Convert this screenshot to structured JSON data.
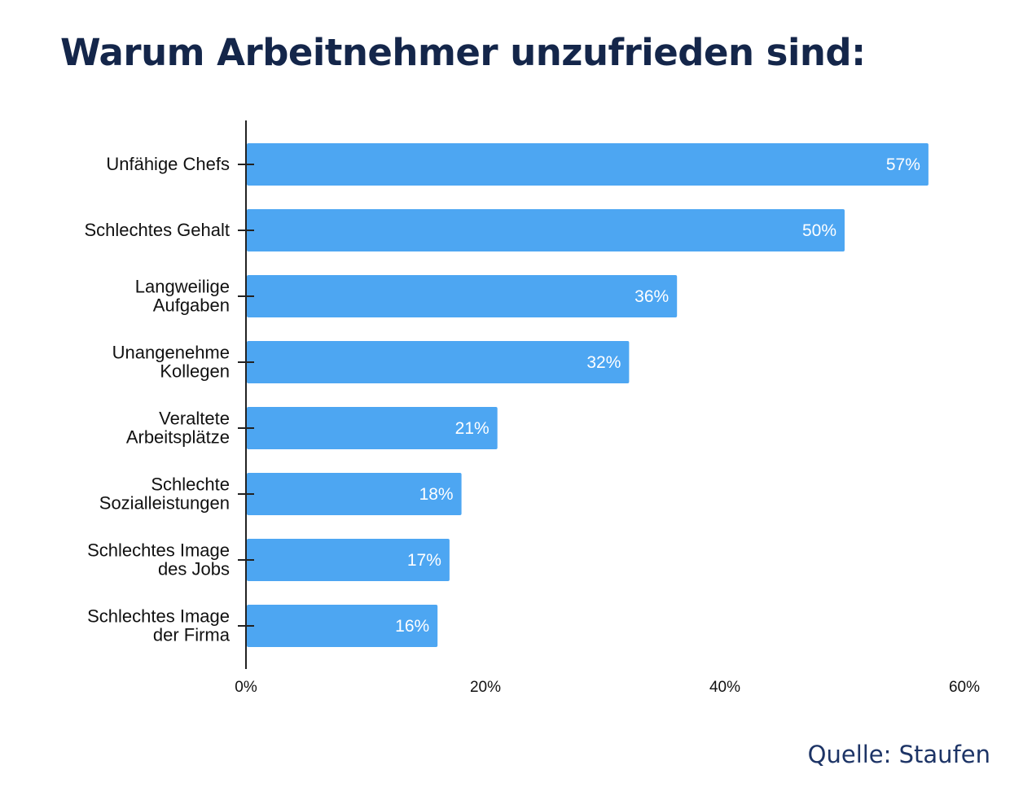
{
  "title": "Warum Arbeitnehmer unzufrieden sind:",
  "source": "Quelle: Staufen",
  "colors": {
    "bar": "#4da6f2",
    "axis": "#222222",
    "title": "#14264a",
    "source": "#1d3466"
  },
  "chart_data": {
    "type": "bar",
    "orientation": "horizontal",
    "title": "",
    "xlabel": "",
    "ylabel": "",
    "categories": [
      [
        "Unfähige Chefs"
      ],
      [
        "Schlechtes Gehalt"
      ],
      [
        "Langweilige",
        "Aufgaben"
      ],
      [
        "Unangenehme",
        "Kollegen"
      ],
      [
        "Veraltete",
        "Arbeitsplätze"
      ],
      [
        "Schlechte",
        "Sozialleistungen"
      ],
      [
        "Schlechtes Image",
        "des Jobs"
      ],
      [
        "Schlechtes Image",
        "der Firma"
      ]
    ],
    "values": [
      57,
      50,
      36,
      32,
      21,
      18,
      17,
      16
    ],
    "value_labels": [
      "57%",
      "50%",
      "36%",
      "32%",
      "21%",
      "18%",
      "17%",
      "16%"
    ],
    "xlim": [
      0,
      60
    ],
    "xticks": [
      0,
      20,
      40,
      60
    ],
    "xtick_labels": [
      "0%",
      "20%",
      "40%",
      "60%"
    ],
    "grid": false,
    "legend": "none"
  }
}
